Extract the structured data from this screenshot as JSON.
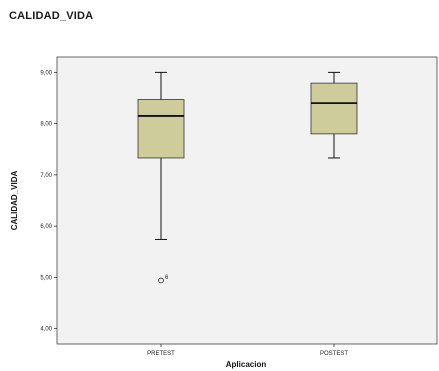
{
  "page": {
    "title": "CALIDAD_VIDA"
  },
  "colors": {
    "box_fill": "#cfcc9c",
    "plot_background": "#f2f2f2",
    "line": "#111111"
  },
  "chart_data": {
    "type": "boxplot",
    "xlabel": "Aplicacion",
    "ylabel": "CALIDAD_VIDA",
    "ylim": [
      3.7,
      9.3
    ],
    "yticks": [
      4,
      5,
      6,
      7,
      8,
      9
    ],
    "ytick_labels": [
      "4,00",
      "5,00",
      "6,00",
      "7,00",
      "8,00",
      "9,00"
    ],
    "grid": false,
    "categories": [
      "PRETEST",
      "POSTEST"
    ],
    "boxes": [
      {
        "category": "PRETEST",
        "whisker_low": 5.74,
        "q1": 7.33,
        "median": 8.15,
        "q3": 8.47,
        "whisker_high": 9.0,
        "outliers": [
          {
            "value": 4.94,
            "label": "6"
          }
        ]
      },
      {
        "category": "POSTEST",
        "whisker_low": 7.33,
        "q1": 7.8,
        "median": 8.4,
        "q3": 8.79,
        "whisker_high": 9.0,
        "outliers": []
      }
    ]
  }
}
